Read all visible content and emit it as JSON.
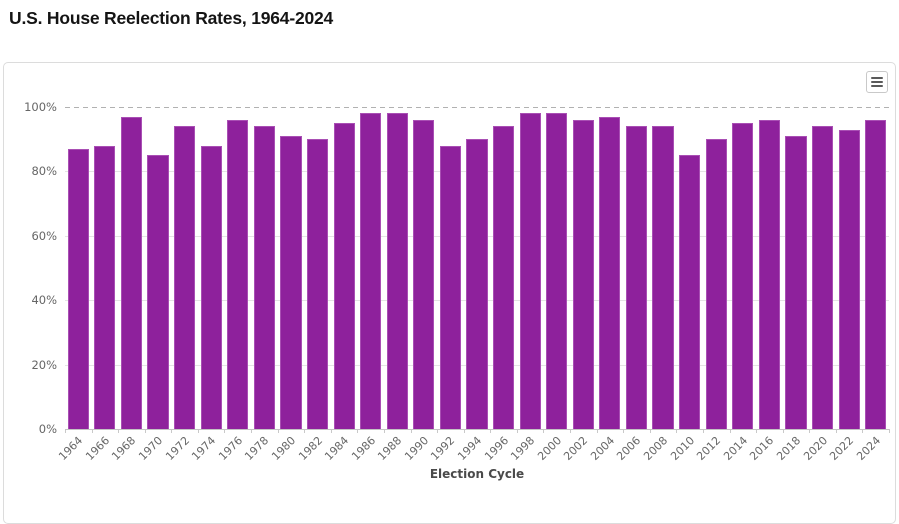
{
  "page": {
    "title": "U.S. House Reelection Rates, 1964-2024"
  },
  "chart": {
    "x_axis_title": "Election Cycle",
    "export_button_icon": "hamburger-menu"
  },
  "chart_data": {
    "type": "bar",
    "title": "U.S. House Reelection Rates, 1964-2024",
    "xlabel": "Election Cycle",
    "ylabel": "",
    "ylim": [
      0,
      100
    ],
    "yticks": [
      0,
      20,
      40,
      60,
      80,
      100
    ],
    "y_tick_suffix": "%",
    "grid": true,
    "top_gridline_style": "dashed",
    "legend_position": "none",
    "bar_color": "#8e219c",
    "bar_border_color": "#a94fb4",
    "categories": [
      "1964",
      "1966",
      "1968",
      "1970",
      "1972",
      "1974",
      "1976",
      "1978",
      "1980",
      "1982",
      "1984",
      "1986",
      "1988",
      "1990",
      "1992",
      "1994",
      "1996",
      "1998",
      "2000",
      "2002",
      "2004",
      "2006",
      "2008",
      "2010",
      "2012",
      "2014",
      "2016",
      "2018",
      "2020",
      "2022",
      "2024"
    ],
    "values": [
      87,
      88,
      97,
      85,
      94,
      88,
      96,
      94,
      91,
      90,
      95,
      98,
      98,
      96,
      88,
      90,
      94,
      98,
      98,
      96,
      97,
      94,
      94,
      85,
      90,
      95,
      96,
      91,
      94,
      93,
      96
    ]
  }
}
